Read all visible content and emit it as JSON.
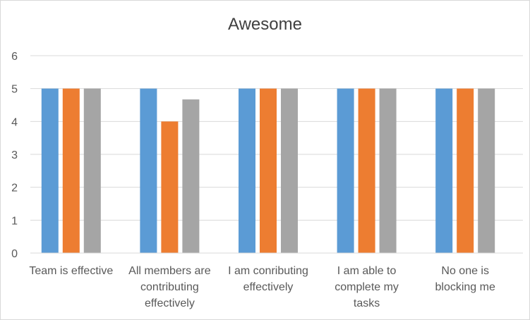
{
  "chart_data": {
    "type": "bar",
    "title": "Awesome",
    "xlabel": "",
    "ylabel": "",
    "ylim": [
      0,
      6
    ],
    "yticks": [
      0,
      1,
      2,
      3,
      4,
      5,
      6
    ],
    "grid": true,
    "legend": "none",
    "categories": [
      [
        "Team is effective"
      ],
      [
        "All members are",
        "contributing",
        "effectively"
      ],
      [
        "I am conributing",
        "effectively"
      ],
      [
        "I am able to",
        "complete my",
        "tasks"
      ],
      [
        "No one is",
        "blocking me"
      ]
    ],
    "series": [
      {
        "values": [
          5,
          5,
          5,
          5,
          5
        ],
        "color": "#5b9bd5"
      },
      {
        "values": [
          5,
          4,
          5,
          5,
          5
        ],
        "color": "#ed7d31"
      },
      {
        "values": [
          5,
          4.67,
          5,
          5,
          5
        ],
        "color": "#a5a5a5"
      }
    ]
  }
}
